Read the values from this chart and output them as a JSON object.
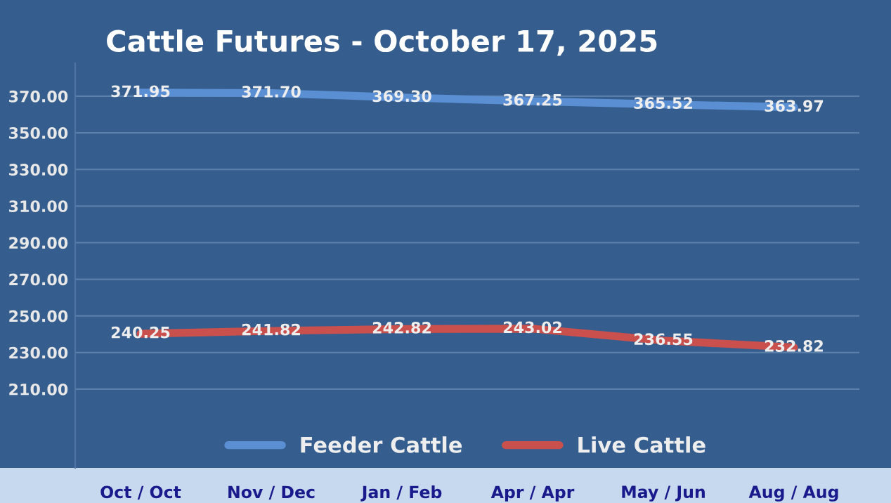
{
  "chart_data": {
    "type": "line",
    "title": "Cattle Futures - October 17, 2025",
    "categories": [
      "Oct / Oct",
      "Nov / Dec",
      "Jan / Feb",
      "Apr / Apr",
      "May / Jun",
      "Aug / Aug"
    ],
    "series": [
      {
        "name": "Feeder Cattle",
        "color": "#5b8fd4",
        "values": [
          371.95,
          371.7,
          369.3,
          367.25,
          365.52,
          363.97
        ],
        "value_labels": [
          "371.95",
          "371.70",
          "369.30",
          "367.25",
          "365.52",
          "363.97"
        ]
      },
      {
        "name": "Live Cattle",
        "color": "#c9504d",
        "values": [
          240.25,
          241.82,
          242.82,
          243.02,
          236.55,
          232.82
        ],
        "value_labels": [
          "240.25",
          "241.82",
          "242.82",
          "243.02",
          "236.55",
          "232.82"
        ]
      }
    ],
    "ylim": [
      167,
      388
    ],
    "yticks": [
      {
        "value": 210,
        "label": "210.00"
      },
      {
        "value": 230,
        "label": "230.00"
      },
      {
        "value": 250,
        "label": "250.00"
      },
      {
        "value": 270,
        "label": "270.00"
      },
      {
        "value": 290,
        "label": "290.00"
      },
      {
        "value": 310,
        "label": "310.00"
      },
      {
        "value": 330,
        "label": "330.00"
      },
      {
        "value": 350,
        "label": "350.00"
      },
      {
        "value": 370,
        "label": "370.00"
      }
    ],
    "grid": "y",
    "legend": "bottom",
    "marker": "none",
    "line_style": "solid"
  }
}
